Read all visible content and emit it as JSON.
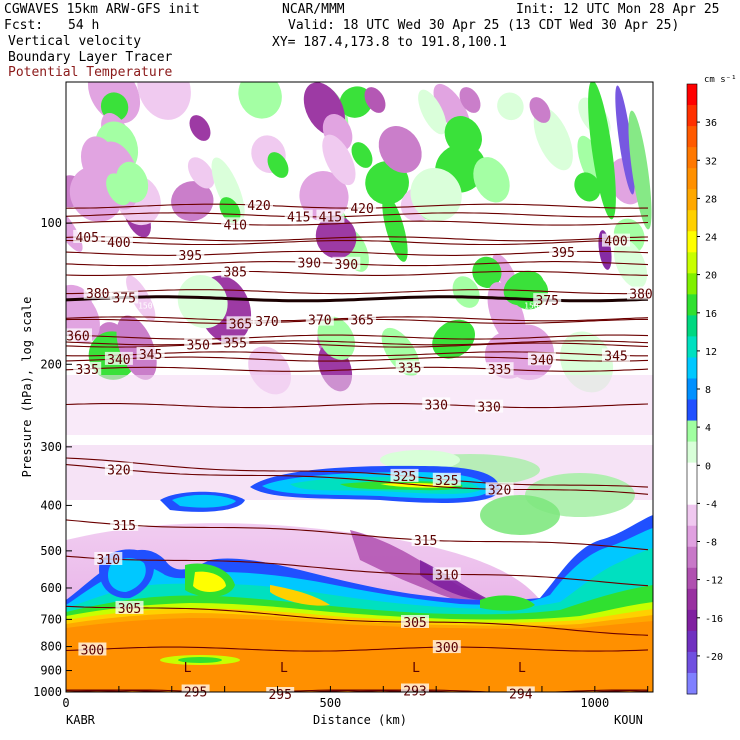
{
  "header": {
    "model": "CGWAVES 15km ARW-GFS init",
    "center": "NCAR/MMM",
    "init": "Init: 12 UTC Mon 28 Apr 25",
    "fcst_label": "Fcst:",
    "fcst_value": "54 h",
    "valid": "Valid: 18 UTC Wed 30 Apr 25 (13 CDT Wed 30 Apr 25)",
    "fields": [
      "Vertical velocity",
      "Boundary Layer Tracer",
      "Potential Temperature"
    ],
    "xy": "XY= 187.4,173.8 to 191.8,100.1"
  },
  "chart_data": {
    "type": "heatmap",
    "ylabel": "Pressure (hPa), log scale",
    "xlabel": "Distance (km)",
    "y_scale": "log",
    "ylim": [
      1000,
      50
    ],
    "xlim": [
      0,
      1110
    ],
    "x_ticks": [
      "0",
      "500",
      "1000"
    ],
    "x_tick_values": [
      0,
      500,
      1000
    ],
    "y_ticks": [
      "100",
      "200",
      "300",
      "400",
      "500",
      "600",
      "700",
      "800",
      "900",
      "1000"
    ],
    "y_tick_values": [
      100,
      200,
      300,
      400,
      500,
      600,
      700,
      800,
      900,
      1000
    ],
    "endpoints": {
      "left": "KABR",
      "right": "KOUN"
    },
    "colorbar": {
      "unit": "cm s⁻¹",
      "labels": [
        "36",
        "32",
        "28",
        "24",
        "20",
        "16",
        "12",
        "8",
        "4",
        "0",
        "-4",
        "-8",
        "-12",
        "-16",
        "-20"
      ],
      "label_values": [
        36,
        32,
        28,
        24,
        20,
        16,
        12,
        8,
        4,
        0,
        -4,
        -8,
        -12,
        -16,
        -20
      ],
      "colors": [
        "#ff0000",
        "#ff3000",
        "#ff5a00",
        "#ff7800",
        "#ff9000",
        "#ffa800",
        "#ffd000",
        "#ffff00",
        "#c8ff00",
        "#80f000",
        "#30e030",
        "#00d880",
        "#00e0c0",
        "#00c8ff",
        "#0090ff",
        "#2050ff",
        "#a0ffa0",
        "#d8ffd8",
        "#ffffff",
        "#ffffff",
        "#f0c8f0",
        "#e0a0e0",
        "#c878c8",
        "#b050b0",
        "#9830a0",
        "#8020a0",
        "#7030c0",
        "#7050e0",
        "#8080ff"
      ]
    },
    "theta_contours": [
      {
        "value": 420,
        "pressure": 92,
        "label_x": [
          365,
          560
        ]
      },
      {
        "value": 415,
        "pressure": 96,
        "label_x": [
          440,
          500
        ]
      },
      {
        "value": 410,
        "pressure": 100,
        "label_x": [
          320
        ]
      },
      {
        "value": 405,
        "pressure": 108,
        "label_x": [
          40
        ]
      },
      {
        "value": 400,
        "pressure": 110,
        "label_x": [
          100,
          1040
        ]
      },
      {
        "value": 395,
        "pressure": 116,
        "label_x": [
          235,
          940
        ]
      },
      {
        "value": 390,
        "pressure": 122,
        "label_x": [
          460,
          530
        ]
      },
      {
        "value": 385,
        "pressure": 128,
        "label_x": [
          320
        ]
      },
      {
        "value": 380,
        "pressure": 140,
        "label_x": [
          60,
          1110
        ]
      },
      {
        "value": 375,
        "pressure": 145,
        "label_x": [
          110,
          910
        ]
      },
      {
        "value": 370,
        "pressure": 160,
        "label_x": [
          380,
          480
        ]
      },
      {
        "value": 365,
        "pressure": 162,
        "label_x": [
          330,
          560
        ]
      },
      {
        "value": 360,
        "pressure": 175,
        "label_x": [
          20
        ]
      },
      {
        "value": 355,
        "pressure": 180,
        "label_x": [
          320
        ]
      },
      {
        "value": 350,
        "pressure": 182,
        "label_x": [
          250
        ]
      },
      {
        "value": 345,
        "pressure": 190,
        "label_x": [
          160,
          1040
        ]
      },
      {
        "value": 340,
        "pressure": 195,
        "label_x": [
          100,
          900
        ]
      },
      {
        "value": 335,
        "pressure": 205,
        "label_x": [
          40,
          650,
          820
        ]
      },
      {
        "value": 330,
        "pressure": 245,
        "label_x": [
          700,
          800
        ]
      },
      {
        "value": 325,
        "pressure": 320,
        "label_x": [
          640,
          720
        ]
      },
      {
        "value": 320,
        "pressure": 330,
        "label_x": [
          100,
          820
        ]
      },
      {
        "value": 315,
        "pressure": 430,
        "label_x": [
          110,
          680
        ]
      },
      {
        "value": 310,
        "pressure": 510,
        "label_x": [
          80,
          720
        ]
      },
      {
        "value": 305,
        "pressure": 650,
        "label_x": [
          120,
          660
        ]
      },
      {
        "value": 300,
        "pressure": 810,
        "label_x": [
          50,
          720
        ]
      },
      {
        "value": 295,
        "pressure": 1000,
        "label_x": [
          245,
          405
        ]
      },
      {
        "value": 293,
        "pressure": 1000,
        "label_x": [
          660
        ]
      },
      {
        "value": 294,
        "pressure": 1000,
        "label_x": [
          860
        ]
      }
    ],
    "tropopause_label": "150",
    "low_markers": [
      "L",
      "L",
      "L",
      "L"
    ]
  }
}
